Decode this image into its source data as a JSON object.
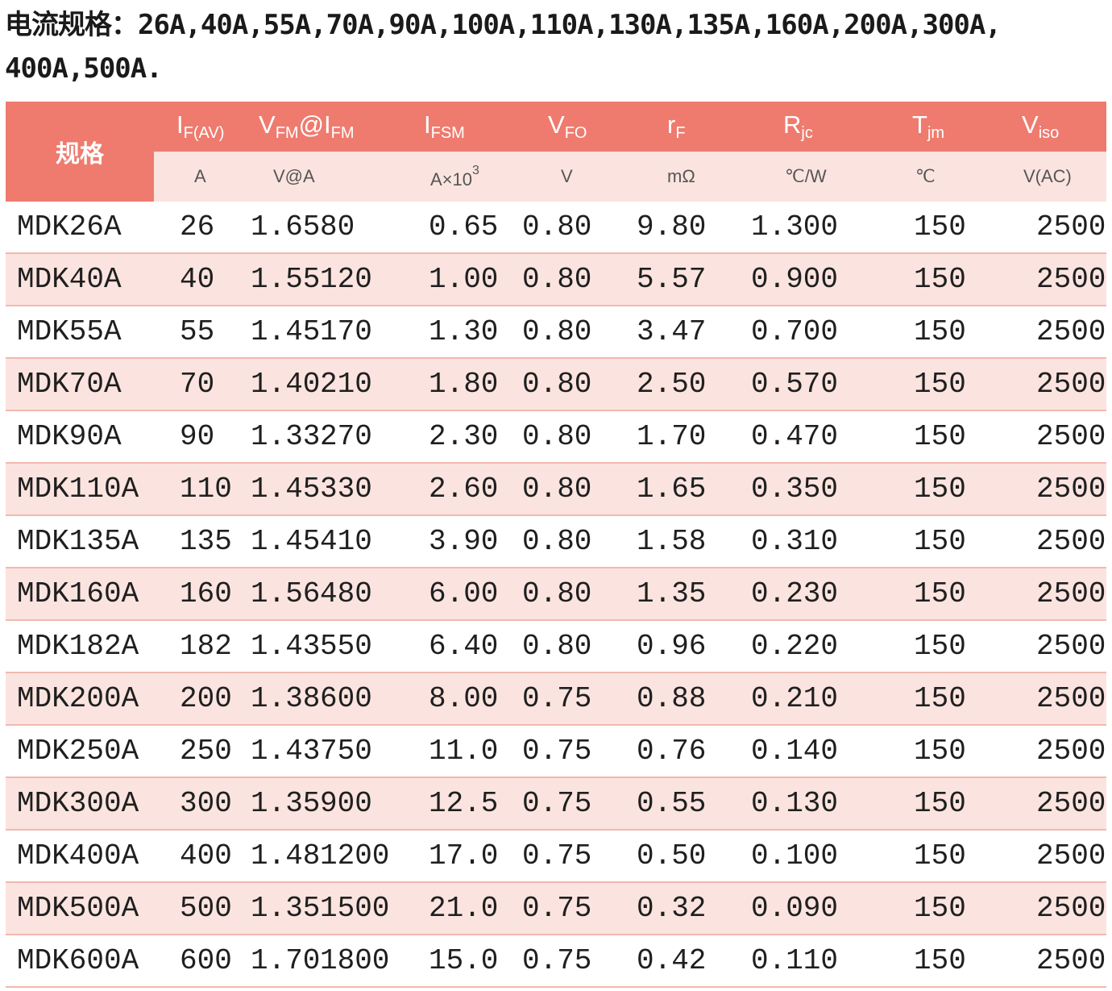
{
  "heading": {
    "line1": "电流规格：26A,40A,55A,70A,90A,100A,110A,130A,135A,160A,200A,300A,",
    "line2": "400A,500A."
  },
  "table": {
    "spec_header": "规格",
    "headers": [
      {
        "main": "I",
        "sub": "F(AV)",
        "unit": "A"
      },
      {
        "main": "V",
        "sub": "FM",
        "main2": "@I",
        "sub2": "FM",
        "unit": "V@A"
      },
      {
        "main": "I",
        "sub": "FSM",
        "unit": "A×10",
        "unit_sup": "3"
      },
      {
        "main": "V",
        "sub": "FO",
        "unit": "V"
      },
      {
        "main": "r",
        "sub": "F",
        "unit": "mΩ"
      },
      {
        "main": "R",
        "sub": "jc",
        "unit": "℃/W"
      },
      {
        "main": "T",
        "sub": "jm",
        "unit": "℃"
      },
      {
        "main": "V",
        "sub": "iso",
        "unit": "V(AC)"
      }
    ],
    "rows": [
      {
        "model": "MDK26A",
        "if": "26",
        "vfm": "1.65",
        "ifm": "80",
        "ifsm": "0.65",
        "vfo": "0.80",
        "rf": "9.80",
        "rjc": "1.300",
        "tjm": "150",
        "viso": "2500"
      },
      {
        "model": "MDK40A",
        "if": "40",
        "vfm": "1.55",
        "ifm": "120",
        "ifsm": "1.00",
        "vfo": "0.80",
        "rf": "5.57",
        "rjc": "0.900",
        "tjm": "150",
        "viso": "2500"
      },
      {
        "model": "MDK55A",
        "if": "55",
        "vfm": "1.45",
        "ifm": "170",
        "ifsm": "1.30",
        "vfo": "0.80",
        "rf": "3.47",
        "rjc": "0.700",
        "tjm": "150",
        "viso": "2500"
      },
      {
        "model": "MDK70A",
        "if": "70",
        "vfm": "1.40",
        "ifm": "210",
        "ifsm": "1.80",
        "vfo": "0.80",
        "rf": "2.50",
        "rjc": "0.570",
        "tjm": "150",
        "viso": "2500"
      },
      {
        "model": "MDK90A",
        "if": "90",
        "vfm": "1.33",
        "ifm": "270",
        "ifsm": "2.30",
        "vfo": "0.80",
        "rf": "1.70",
        "rjc": "0.470",
        "tjm": "150",
        "viso": "2500"
      },
      {
        "model": "MDK110A",
        "if": "110",
        "vfm": "1.45",
        "ifm": "330",
        "ifsm": "2.60",
        "vfo": "0.80",
        "rf": "1.65",
        "rjc": "0.350",
        "tjm": "150",
        "viso": "2500"
      },
      {
        "model": "MDK135A",
        "if": "135",
        "vfm": "1.45",
        "ifm": "410",
        "ifsm": "3.90",
        "vfo": "0.80",
        "rf": "1.58",
        "rjc": "0.310",
        "tjm": "150",
        "viso": "2500"
      },
      {
        "model": "MDK160A",
        "if": "160",
        "vfm": "1.56",
        "ifm": "480",
        "ifsm": "6.00",
        "vfo": "0.80",
        "rf": "1.35",
        "rjc": "0.230",
        "tjm": "150",
        "viso": "2500"
      },
      {
        "model": "MDK182A",
        "if": "182",
        "vfm": "1.43",
        "ifm": "550",
        "ifsm": "6.40",
        "vfo": "0.80",
        "rf": "0.96",
        "rjc": "0.220",
        "tjm": "150",
        "viso": "2500"
      },
      {
        "model": "MDK200A",
        "if": "200",
        "vfm": "1.38",
        "ifm": "600",
        "ifsm": "8.00",
        "vfo": "0.75",
        "rf": "0.88",
        "rjc": "0.210",
        "tjm": "150",
        "viso": "2500"
      },
      {
        "model": "MDK250A",
        "if": "250",
        "vfm": "1.43",
        "ifm": "750",
        "ifsm": "11.0",
        "vfo": "0.75",
        "rf": "0.76",
        "rjc": "0.140",
        "tjm": "150",
        "viso": "2500"
      },
      {
        "model": "MDK300A",
        "if": "300",
        "vfm": "1.35",
        "ifm": "900",
        "ifsm": "12.5",
        "vfo": "0.75",
        "rf": "0.55",
        "rjc": "0.130",
        "tjm": "150",
        "viso": "2500"
      },
      {
        "model": "MDK400A",
        "if": "400",
        "vfm": "1.48",
        "ifm": "1200",
        "ifsm": "17.0",
        "vfo": "0.75",
        "rf": "0.50",
        "rjc": "0.100",
        "tjm": "150",
        "viso": "2500"
      },
      {
        "model": "MDK500A",
        "if": "500",
        "vfm": "1.35",
        "ifm": "1500",
        "ifsm": "21.0",
        "vfo": "0.75",
        "rf": "0.32",
        "rjc": "0.090",
        "tjm": "150",
        "viso": "2500"
      },
      {
        "model": "MDK600A",
        "if": "600",
        "vfm": "1.70",
        "ifm": "1800",
        "ifsm": "15.0",
        "vfo": "0.75",
        "rf": "0.42",
        "rjc": "0.110",
        "tjm": "150",
        "viso": "2500"
      }
    ]
  },
  "colors": {
    "header_bg": "#ee7b6e",
    "stripe_bg": "#fbe4df",
    "row_border": "#f2b8ae"
  }
}
